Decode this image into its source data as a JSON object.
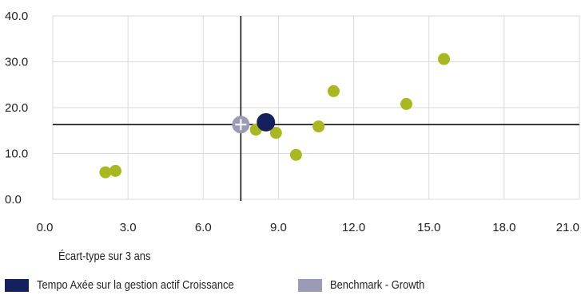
{
  "chart_data": {
    "type": "scatter",
    "xlabel": "Écart-type sur 3 ans",
    "ylabel": "",
    "xlim": [
      0,
      21
    ],
    "ylim": [
      0,
      40
    ],
    "x_ticks": [
      "0.0",
      "3.0",
      "6.0",
      "9.0",
      "12.0",
      "15.0",
      "18.0",
      "21.0"
    ],
    "y_ticks": [
      "0.0",
      "10.0",
      "20.0",
      "30.0",
      "40.0"
    ],
    "grid": true,
    "legend_position": "bottom",
    "crosshair": {
      "x": 7.5,
      "y": 16.3
    },
    "series": [
      {
        "name": "",
        "color": "#a8b820",
        "points": [
          {
            "x": 2.1,
            "y": 5.9
          },
          {
            "x": 2.5,
            "y": 6.2
          },
          {
            "x": 8.1,
            "y": 15.2
          },
          {
            "x": 8.9,
            "y": 14.5
          },
          {
            "x": 9.7,
            "y": 9.7
          },
          {
            "x": 10.6,
            "y": 15.9
          },
          {
            "x": 11.2,
            "y": 23.6
          },
          {
            "x": 14.1,
            "y": 20.8
          },
          {
            "x": 15.6,
            "y": 30.6
          }
        ]
      },
      {
        "name": "Tempo Axée sur la gestion actif Croissance",
        "color": "#14215e",
        "points": [
          {
            "x": 8.5,
            "y": 16.8
          }
        ]
      },
      {
        "name": "Benchmark - Growth",
        "color": "#9b9bb5",
        "points": [
          {
            "x": 7.5,
            "y": 16.3
          }
        ]
      }
    ]
  }
}
